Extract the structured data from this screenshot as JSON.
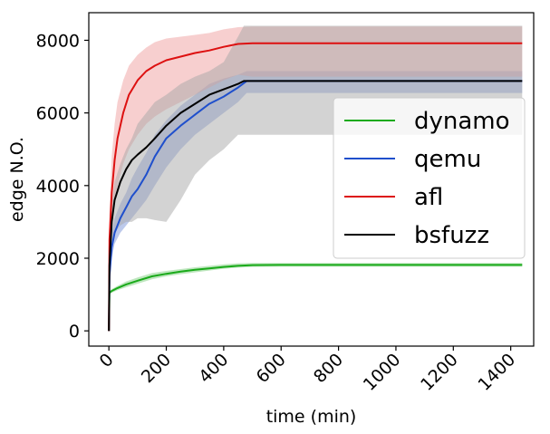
{
  "chart_data": {
    "type": "line",
    "title": "",
    "xlabel": "time (min)",
    "ylabel": "edge N.O.",
    "xlim": [
      -70,
      1480
    ],
    "ylim": [
      -420,
      8760
    ],
    "xticks": [
      0,
      200,
      400,
      600,
      800,
      1000,
      1200,
      1400
    ],
    "yticks": [
      0,
      2000,
      4000,
      6000,
      8000
    ],
    "grid": false,
    "legend_position": "center-right",
    "series": [
      {
        "name": "dynamo",
        "color": "#1aaa1a",
        "band_color": "#7fd07f",
        "x": [
          0,
          2,
          10,
          30,
          60,
          100,
          150,
          200,
          250,
          300,
          350,
          400,
          450,
          500,
          600,
          800,
          1000,
          1200,
          1440
        ],
        "y": [
          0,
          1050,
          1100,
          1180,
          1280,
          1380,
          1500,
          1570,
          1630,
          1680,
          1720,
          1760,
          1790,
          1810,
          1815,
          1815,
          1815,
          1815,
          1815
        ],
        "lower": [
          0,
          1000,
          1050,
          1120,
          1200,
          1300,
          1420,
          1500,
          1560,
          1610,
          1660,
          1710,
          1740,
          1760,
          1765,
          1765,
          1765,
          1765,
          1765
        ],
        "upper": [
          0,
          1100,
          1150,
          1240,
          1360,
          1470,
          1590,
          1650,
          1700,
          1750,
          1790,
          1830,
          1860,
          1870,
          1870,
          1870,
          1870,
          1870,
          1870
        ]
      },
      {
        "name": "qemu",
        "color": "#1f4fcc",
        "band_color": "#7a94d8",
        "x": [
          0,
          2,
          10,
          20,
          40,
          60,
          80,
          100,
          130,
          160,
          200,
          250,
          300,
          350,
          400,
          450,
          480,
          600,
          800,
          1000,
          1200,
          1440
        ],
        "y": [
          0,
          1500,
          2300,
          2700,
          3100,
          3400,
          3700,
          3900,
          4300,
          4800,
          5300,
          5650,
          5950,
          6250,
          6450,
          6700,
          6880,
          6880,
          6880,
          6880,
          6880,
          6880
        ],
        "lower": [
          0,
          1300,
          2000,
          2400,
          2700,
          2900,
          3100,
          3300,
          3600,
          4000,
          4500,
          5000,
          5400,
          5700,
          6000,
          6300,
          6550,
          6550,
          6550,
          6550,
          6550,
          6550
        ],
        "upper": [
          0,
          1800,
          2700,
          3100,
          3500,
          3800,
          4200,
          4500,
          4900,
          5400,
          5800,
          6200,
          6500,
          6800,
          6950,
          7050,
          7150,
          7150,
          7150,
          7150,
          7150,
          7150
        ]
      },
      {
        "name": "afl",
        "color": "#dd1111",
        "band_color": "#f0a0a0",
        "x": [
          0,
          2,
          10,
          20,
          30,
          50,
          70,
          100,
          130,
          160,
          200,
          250,
          300,
          350,
          400,
          450,
          500,
          600,
          800,
          1000,
          1200,
          1440
        ],
        "y": [
          0,
          2500,
          3800,
          4700,
          5300,
          6000,
          6500,
          6900,
          7150,
          7300,
          7450,
          7550,
          7650,
          7720,
          7820,
          7900,
          7920,
          7920,
          7920,
          7920,
          7920,
          7920
        ],
        "lower": [
          0,
          1500,
          2800,
          3500,
          4000,
          4600,
          5000,
          5400,
          5700,
          5900,
          6100,
          6300,
          6500,
          6700,
          6900,
          7050,
          7000,
          7000,
          7000,
          7000,
          7000,
          7000
        ],
        "upper": [
          0,
          3200,
          4800,
          5700,
          6300,
          6900,
          7300,
          7600,
          7800,
          7950,
          8050,
          8100,
          8150,
          8200,
          8300,
          8360,
          8380,
          8380,
          8380,
          8380,
          8380,
          8380
        ]
      },
      {
        "name": "bsfuzz",
        "color": "#000000",
        "band_color": "#a8a8a8",
        "x": [
          0,
          2,
          10,
          20,
          40,
          60,
          80,
          100,
          130,
          160,
          200,
          250,
          300,
          350,
          400,
          450,
          470,
          600,
          800,
          1000,
          1200,
          1440
        ],
        "y": [
          0,
          1800,
          3000,
          3600,
          4100,
          4450,
          4700,
          4850,
          5050,
          5300,
          5650,
          6000,
          6250,
          6500,
          6650,
          6800,
          6880,
          6880,
          6880,
          6880,
          6880,
          6880
        ],
        "lower": [
          0,
          1400,
          2300,
          2700,
          2900,
          3000,
          3000,
          3100,
          3100,
          3050,
          3000,
          3600,
          4300,
          4700,
          5000,
          5400,
          5400,
          5400,
          5400,
          5400,
          5400,
          5400
        ],
        "upper": [
          0,
          2200,
          3500,
          4100,
          4600,
          5000,
          5300,
          5700,
          6000,
          6300,
          6500,
          6800,
          7000,
          7150,
          7400,
          8100,
          8400,
          8400,
          8400,
          8400,
          8400,
          8400
        ]
      }
    ]
  }
}
